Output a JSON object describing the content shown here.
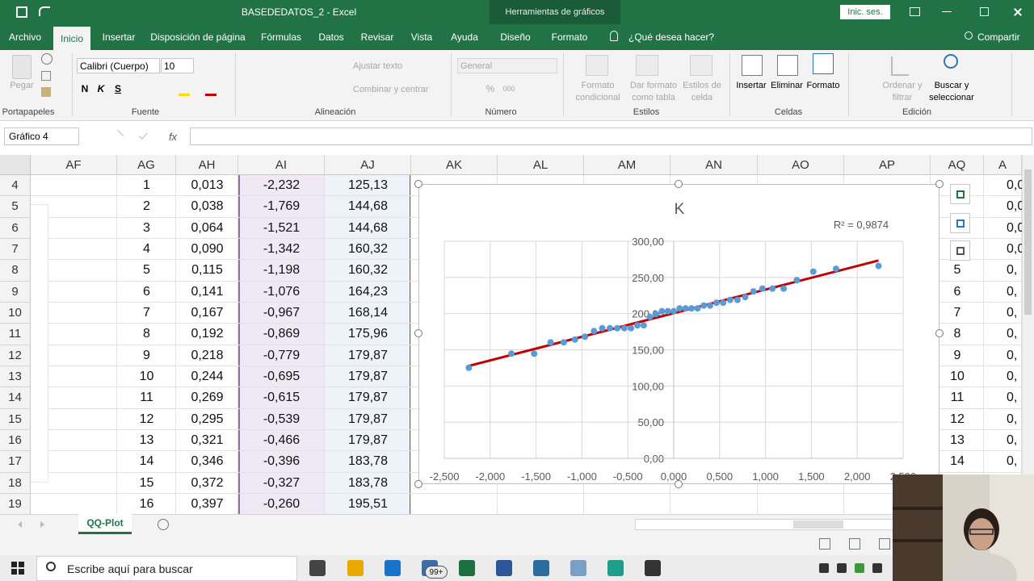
{
  "title_bar": {
    "file_name": "BASEDEDATOS_2  -  Excel",
    "context_tools": "Herramientas de gráficos",
    "sign_in": "Inic. ses."
  },
  "ribbon_tabs": [
    "Archivo",
    "Inicio",
    "Insertar",
    "Disposición de página",
    "Fórmulas",
    "Datos",
    "Revisar",
    "Vista",
    "Ayuda",
    "Diseño",
    "Formato"
  ],
  "search_hint": "¿Qué desea hacer?",
  "share": "Compartir",
  "ribbon_buttons": [
    "Pegar",
    "Calibri (Cuerpo)",
    "10",
    "N",
    "K",
    "S",
    "Ajustar texto",
    "Combinar y centrar",
    "General",
    "%",
    "000",
    "Formato condicional",
    "Dar formato como tabla",
    "Estilos de celda",
    "Insertar",
    "Eliminar",
    "Formato",
    "Ordenar y filtrar",
    "Buscar y seleccionar"
  ],
  "ribbon_groups": [
    "Portapapeles",
    "Fuente",
    "Alineación",
    "Número",
    "Estilos",
    "Celdas",
    "Edición"
  ],
  "name_box": "Gráfico 4",
  "formula_label": "fx",
  "columns": [
    "AF",
    "AG",
    "AH",
    "AI",
    "AJ",
    "AK",
    "AL",
    "AM",
    "AN",
    "AO",
    "AP",
    "AQ",
    "A"
  ],
  "rows": [
    {
      "n": "4",
      "cells": [
        "1",
        "0,013",
        "-2,232",
        "125,13"
      ]
    },
    {
      "n": "5",
      "cells": [
        "2",
        "0,038",
        "-1,769",
        "144,68"
      ]
    },
    {
      "n": "6",
      "cells": [
        "3",
        "0,064",
        "-1,521",
        "144,68"
      ]
    },
    {
      "n": "7",
      "cells": [
        "4",
        "0,090",
        "-1,342",
        "160,32"
      ]
    },
    {
      "n": "8",
      "cells": [
        "5",
        "0,115",
        "-1,198",
        "160,32"
      ]
    },
    {
      "n": "9",
      "cells": [
        "6",
        "0,141",
        "-1,076",
        "164,23"
      ]
    },
    {
      "n": "10",
      "cells": [
        "7",
        "0,167",
        "-0,967",
        "168,14"
      ]
    },
    {
      "n": "11",
      "cells": [
        "8",
        "0,192",
        "-0,869",
        "175,96"
      ]
    },
    {
      "n": "12",
      "cells": [
        "9",
        "0,218",
        "-0,779",
        "179,87"
      ]
    },
    {
      "n": "13",
      "cells": [
        "10",
        "0,244",
        "-0,695",
        "179,87"
      ]
    },
    {
      "n": "14",
      "cells": [
        "11",
        "0,269",
        "-0,615",
        "179,87"
      ]
    },
    {
      "n": "15",
      "cells": [
        "12",
        "0,295",
        "-0,539",
        "179,87"
      ]
    },
    {
      "n": "16",
      "cells": [
        "13",
        "0,321",
        "-0,466",
        "179,87"
      ]
    },
    {
      "n": "17",
      "cells": [
        "14",
        "0,346",
        "-0,396",
        "183,78"
      ]
    },
    {
      "n": "18",
      "cells": [
        "15",
        "0,372",
        "-0,327",
        "183,78"
      ]
    },
    {
      "n": "19",
      "cells": [
        "16",
        "0,397",
        "-0,260",
        "195,51"
      ]
    }
  ],
  "aq_column": [
    "5",
    "6",
    "7",
    "8",
    "9",
    "10",
    "11",
    "12",
    "13",
    "14"
  ],
  "ar_column": [
    "0,0",
    "0,0",
    "0,0",
    "0,0",
    "0,",
    "0,",
    "0,",
    "0,",
    "0,",
    "0,",
    "0,",
    "0,",
    "0,",
    "0,"
  ],
  "chart_data": {
    "type": "scatter",
    "title": "K",
    "annotation": "R² = 0,9874",
    "x": [
      -2.232,
      -1.769,
      -1.521,
      -1.342,
      -1.198,
      -1.076,
      -0.967,
      -0.869,
      -0.779,
      -0.695,
      -0.615,
      -0.539,
      -0.466,
      -0.396,
      -0.327,
      -0.26,
      -0.194,
      -0.129,
      -0.064,
      0,
      0.064,
      0.129,
      0.194,
      0.26,
      0.327,
      0.396,
      0.466,
      0.539,
      0.615,
      0.695,
      0.779,
      0.869,
      0.967,
      1.076,
      1.198,
      1.342,
      1.521,
      1.769,
      2.232
    ],
    "series": [
      {
        "name": "K",
        "color": "#5b9bd5",
        "values": [
          125.13,
          144.68,
          144.68,
          160.32,
          160.32,
          164.23,
          168.14,
          175.96,
          179.87,
          179.87,
          179.87,
          179.87,
          179.87,
          183.78,
          183.78,
          195.51,
          199.42,
          203.33,
          203.33,
          203.33,
          207.24,
          207.24,
          207.24,
          207.24,
          211.15,
          211.15,
          215.06,
          215.06,
          218.97,
          218.97,
          222.88,
          230.7,
          234.61,
          234.61,
          234.61,
          246.34,
          258.07,
          262,
          265.89
        ]
      }
    ],
    "trendline": {
      "type": "linear",
      "color": "#c00000"
    },
    "xlim": [
      -2.5,
      2.5
    ],
    "xticks": [
      {
        "value": -2.5,
        "label": "-2,500"
      },
      {
        "value": -2,
        "label": "-2,000"
      },
      {
        "value": -1.5,
        "label": "-1,500"
      },
      {
        "value": -1,
        "label": "-1,000"
      },
      {
        "value": -0.5,
        "label": "-0,500"
      },
      {
        "value": 0,
        "label": "0,000"
      },
      {
        "value": 0.5,
        "label": "0,500"
      },
      {
        "value": 1,
        "label": "1,000"
      },
      {
        "value": 1.5,
        "label": "1,500"
      },
      {
        "value": 2,
        "label": "2,000"
      },
      {
        "value": 2.5,
        "label": "2,500"
      }
    ],
    "ylim": [
      0,
      300
    ],
    "yticks": [
      {
        "value": 0,
        "label": "0,00"
      },
      {
        "value": 50,
        "label": "50,00"
      },
      {
        "value": 100,
        "label": "100,00"
      },
      {
        "value": 150,
        "label": "150,00"
      },
      {
        "value": 200,
        "label": "200,00"
      },
      {
        "value": 250,
        "label": "250,00"
      },
      {
        "value": 300,
        "label": "300,00"
      }
    ],
    "grid": true
  },
  "sheet_tab": "QQ-Plot",
  "taskbar": {
    "search": "Escribe aquí para buscar",
    "badge": "99+"
  }
}
